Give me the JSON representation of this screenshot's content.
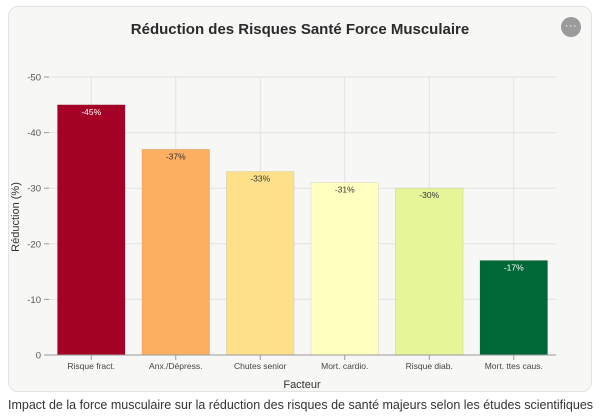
{
  "chart_data": {
    "type": "bar",
    "title": "Réduction des Risques Santé Force Musculaire",
    "xlabel": "Facteur",
    "ylabel": "Réduction (%)",
    "categories": [
      "Risque fract.",
      "Anx./Dépress.",
      "Chutes senior",
      "Mort. cardio.",
      "Risque diab.",
      "Mort. ttes caus."
    ],
    "values": [
      -45,
      -37,
      -33,
      -31,
      -30,
      -17
    ],
    "data_labels": [
      "-45%",
      "-37%",
      "-33%",
      "-31%",
      "-30%",
      "-17%"
    ],
    "bar_colors": [
      "#a50026",
      "#fdae61",
      "#fee08b",
      "#ffffbf",
      "#e6f598",
      "#006837"
    ],
    "ylim": [
      0,
      -50
    ],
    "yticks": [
      0,
      -10,
      -20,
      -30,
      -40,
      -50
    ],
    "ytick_labels": [
      "0",
      "-10",
      "-20",
      "-30",
      "-40",
      "-50"
    ],
    "grid": true,
    "legend": "none"
  },
  "caption": "Impact de la force musculaire sur la réduction des risques de santé majeurs selon les études scientifiques",
  "more_button_label": "···"
}
